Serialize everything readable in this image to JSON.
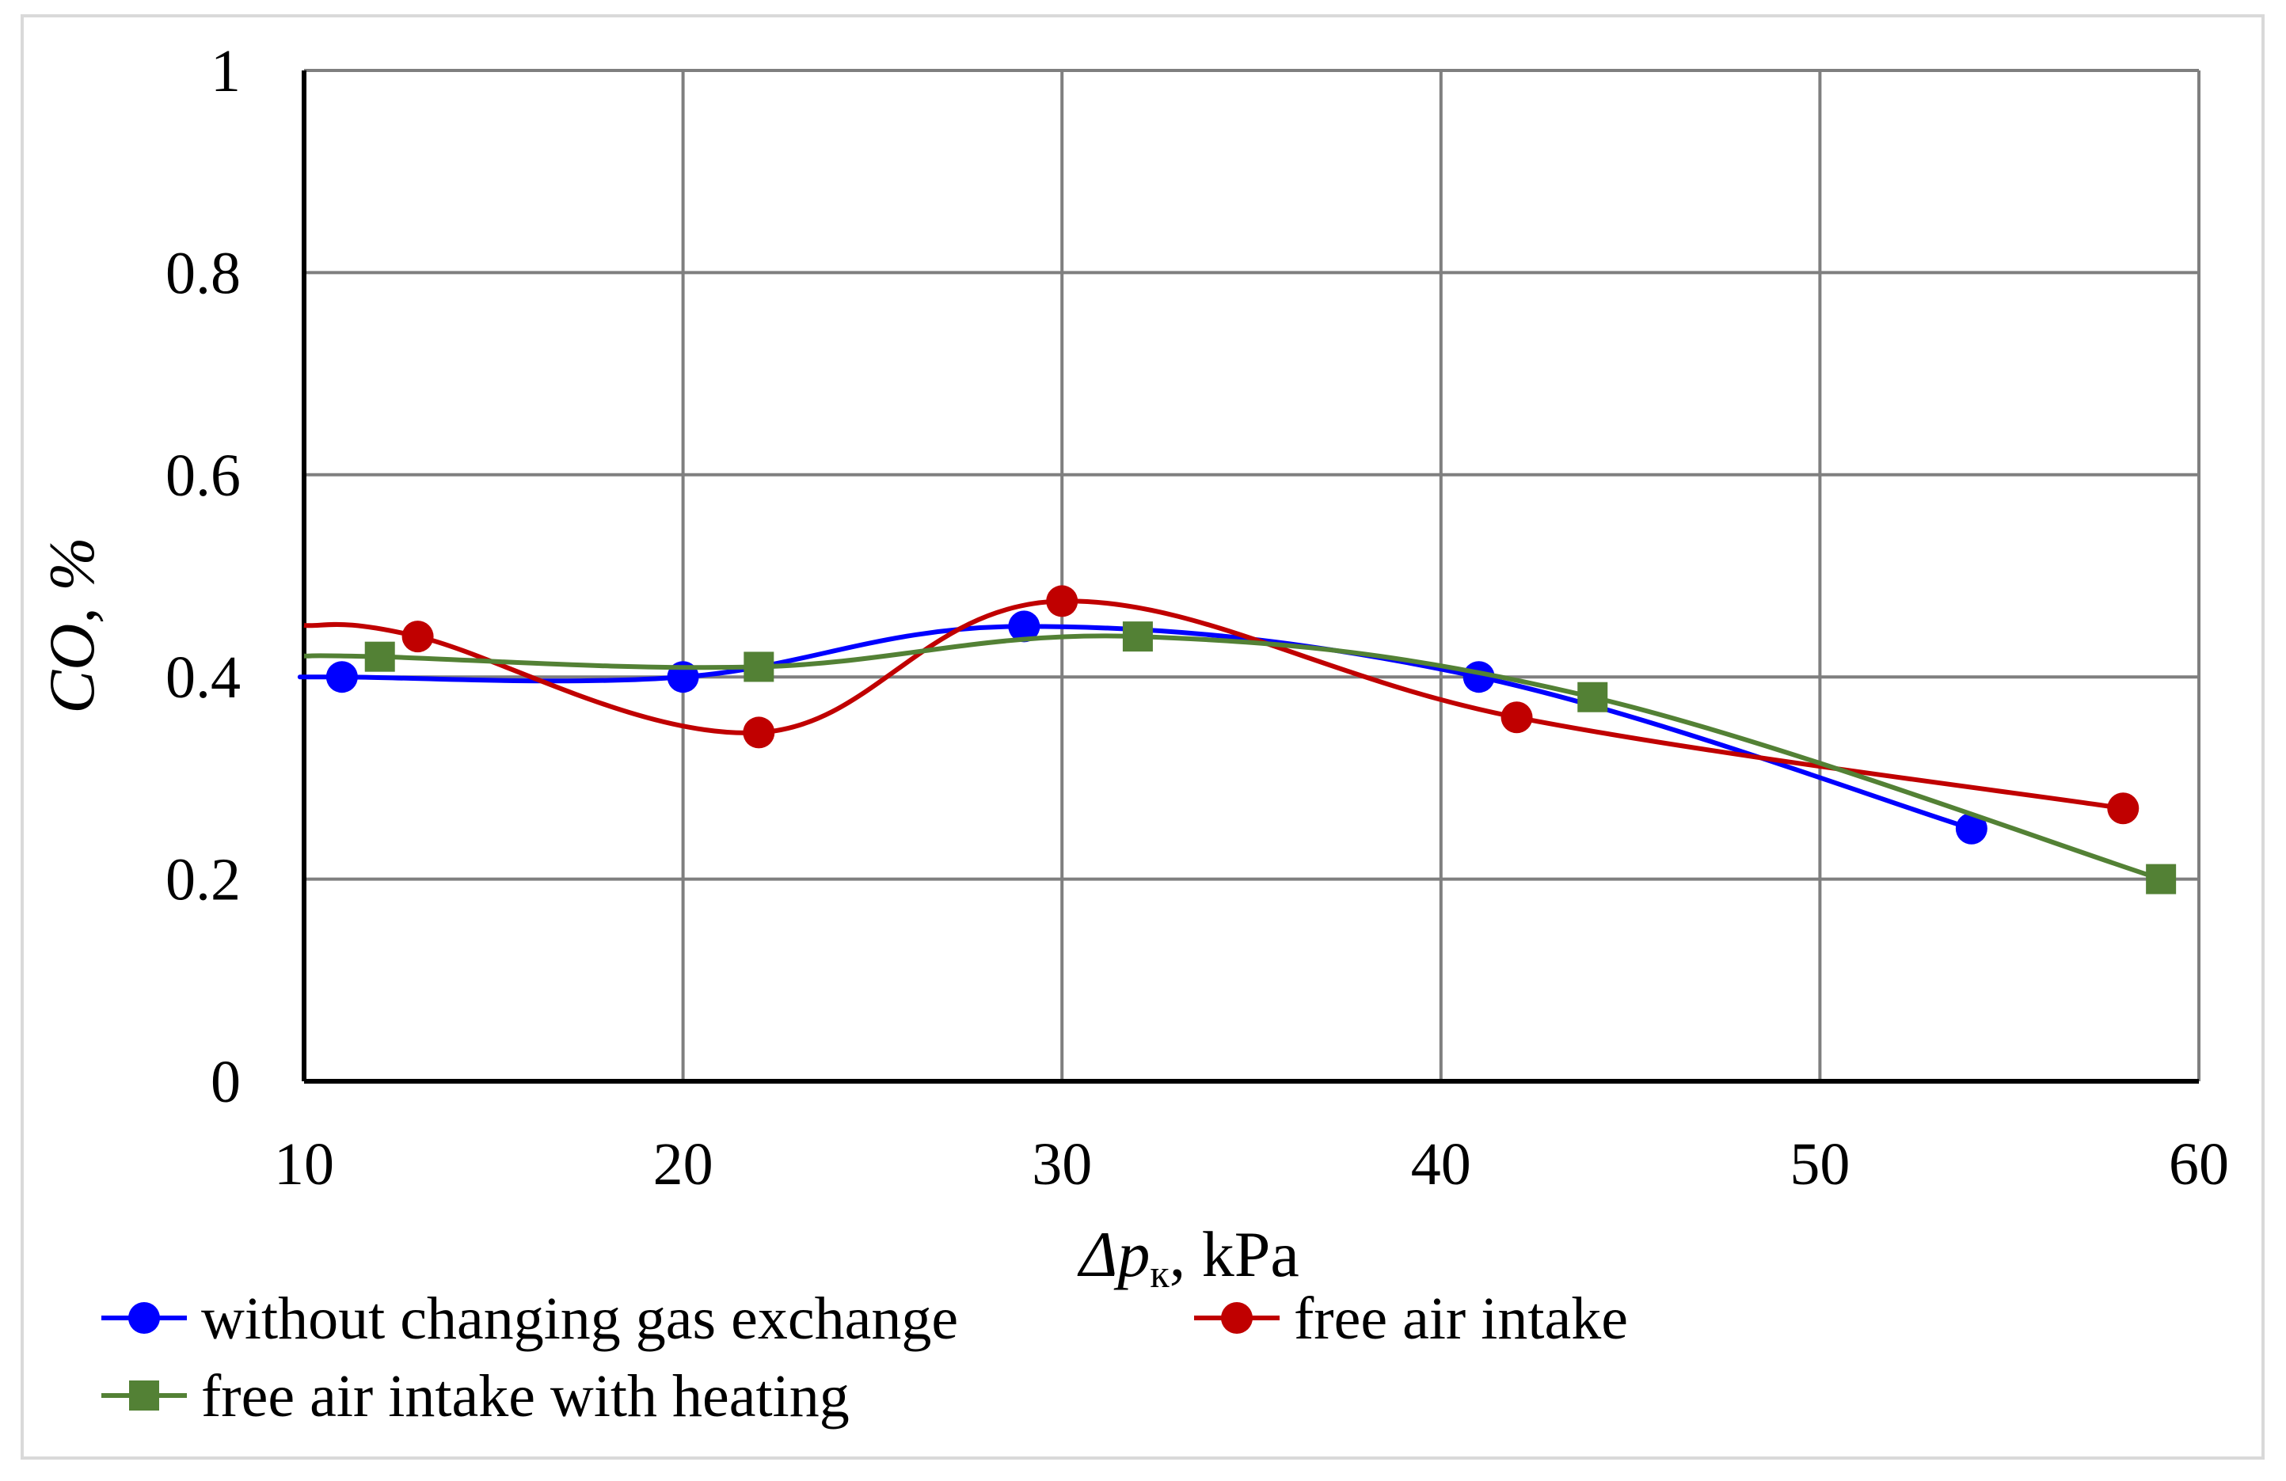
{
  "chart_data": {
    "type": "line",
    "title": "",
    "xlabel_italic": "Δp",
    "xlabel_subscript": "к",
    "xlabel_unit": ", kPa",
    "ylabel": "CO, %",
    "xlim": [
      10,
      60
    ],
    "ylim": [
      0,
      1
    ],
    "xticks": [
      10,
      20,
      30,
      40,
      50,
      60
    ],
    "yticks": [
      0,
      0.2,
      0.4,
      0.6,
      0.8,
      1
    ],
    "xtick_labels": [
      "10",
      "20",
      "30",
      "40",
      "50",
      "60"
    ],
    "ytick_labels": [
      "0",
      "0.2",
      "0.4",
      "0.6",
      "0.8",
      "1"
    ],
    "grid": true,
    "legend_position": "bottom",
    "series": [
      {
        "name": "without changing gas exchange",
        "color": "#0000ff",
        "marker": "circle",
        "points": [
          [
            11,
            0.4
          ],
          [
            20,
            0.4
          ],
          [
            29,
            0.45
          ],
          [
            41,
            0.4
          ],
          [
            54,
            0.25
          ]
        ]
      },
      {
        "name": "free air intake",
        "color": "#c00000",
        "marker": "circle",
        "points": [
          [
            13,
            0.44
          ],
          [
            22,
            0.345
          ],
          [
            30,
            0.475
          ],
          [
            42,
            0.36
          ],
          [
            58,
            0.27
          ]
        ]
      },
      {
        "name": "free air intake with heating",
        "color": "#538135",
        "marker": "square",
        "points": [
          [
            12,
            0.42
          ],
          [
            22,
            0.41
          ],
          [
            32,
            0.44
          ],
          [
            44,
            0.38
          ],
          [
            59,
            0.2
          ]
        ]
      }
    ]
  }
}
